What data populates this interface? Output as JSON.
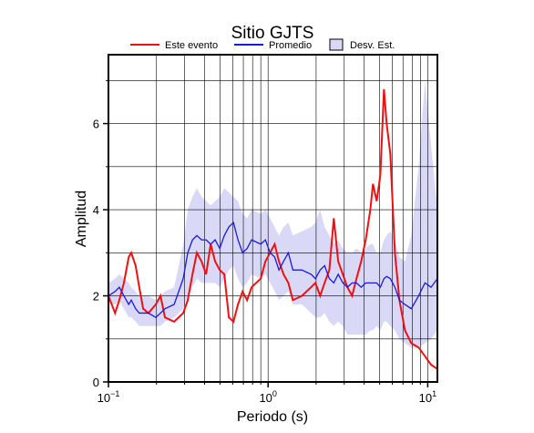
{
  "chart_data": {
    "type": "line",
    "title": "Sitio GJTS",
    "x_label": "Periodo (s)",
    "y_label": "Amplitud",
    "xlog": true,
    "xlim": [
      0.1,
      11.5
    ],
    "ylim": [
      0,
      7.6
    ],
    "xticks": [
      {
        "value": 0.1,
        "label": "10",
        "exponent": "−1"
      },
      {
        "value": 1,
        "label": "10",
        "exponent": "0"
      },
      {
        "value": 10,
        "label": "10",
        "exponent": "1"
      }
    ],
    "xminor": [
      0.2,
      0.3,
      0.4,
      0.5,
      0.6,
      0.7,
      0.8,
      0.9,
      2,
      3,
      4,
      5,
      6,
      7,
      8,
      9
    ],
    "yticks": [
      0,
      2,
      4,
      6
    ],
    "yminor": [
      1,
      3,
      5,
      7
    ],
    "grid": true,
    "x": [
      0.1,
      0.11,
      0.117,
      0.125,
      0.134,
      0.139,
      0.148,
      0.156,
      0.165,
      0.178,
      0.198,
      0.212,
      0.226,
      0.258,
      0.294,
      0.314,
      0.336,
      0.358,
      0.383,
      0.409,
      0.437,
      0.466,
      0.498,
      0.532,
      0.568,
      0.607,
      0.648,
      0.692,
      0.739,
      0.789,
      0.9,
      0.962,
      1.03,
      1.1,
      1.17,
      1.25,
      1.34,
      1.43,
      1.63,
      1.86,
      1.98,
      2.12,
      2.26,
      2.42,
      2.58,
      2.75,
      2.94,
      3.14,
      3.36,
      3.58,
      3.83,
      4.09,
      4.37,
      4.54,
      4.79,
      5.05,
      5.32,
      5.53,
      5.83,
      6.23,
      6.65,
      7.2,
      7.89,
      8.77,
      9.61,
      10.5,
      11.5
    ],
    "series": [
      {
        "name": "Este evento",
        "color": "#ee1111",
        "values": [
          2.0,
          1.6,
          1.9,
          2.3,
          2.9,
          3.0,
          2.7,
          2.2,
          1.7,
          1.6,
          1.8,
          2.0,
          1.5,
          1.4,
          1.6,
          1.9,
          2.5,
          3.0,
          2.8,
          2.5,
          3.2,
          2.8,
          2.6,
          2.5,
          1.5,
          1.4,
          1.8,
          2.1,
          1.9,
          2.2,
          2.4,
          2.8,
          3.0,
          3.2,
          2.8,
          2.5,
          2.3,
          1.9,
          2.0,
          2.2,
          2.3,
          2.0,
          2.3,
          2.6,
          3.8,
          2.8,
          2.5,
          2.2,
          2.0,
          2.4,
          2.8,
          3.3,
          4.0,
          4.6,
          4.2,
          4.8,
          6.8,
          6.0,
          5.3,
          3.0,
          1.9,
          1.2,
          0.9,
          0.8,
          0.6,
          0.4,
          0.3
        ]
      },
      {
        "name": "Promedio",
        "color": "#1a1adb",
        "values": [
          2.0,
          2.1,
          2.2,
          2.0,
          1.8,
          1.9,
          1.7,
          1.6,
          1.6,
          1.6,
          1.5,
          1.6,
          1.7,
          1.8,
          2.4,
          3.0,
          3.3,
          3.4,
          3.3,
          3.3,
          3.2,
          3.3,
          3.1,
          3.4,
          3.6,
          3.7,
          3.3,
          3.0,
          3.1,
          3.3,
          3.2,
          3.3,
          3.0,
          2.9,
          2.6,
          2.8,
          3.0,
          2.6,
          2.6,
          2.5,
          2.4,
          2.6,
          2.7,
          2.4,
          2.3,
          2.5,
          2.3,
          2.2,
          2.3,
          2.3,
          2.2,
          2.3,
          2.3,
          2.3,
          2.3,
          2.2,
          2.4,
          2.45,
          2.4,
          2.2,
          1.9,
          1.8,
          1.7,
          2.0,
          2.3,
          2.2,
          2.4
        ]
      },
      {
        "name": "Desv. Est.",
        "type": "band",
        "color": "#d9d9f7",
        "upper": [
          2.3,
          2.4,
          2.5,
          2.4,
          2.3,
          2.2,
          2.1,
          2.0,
          2.0,
          2.0,
          1.9,
          2.0,
          2.1,
          2.2,
          3.2,
          4.0,
          4.3,
          4.5,
          4.3,
          4.2,
          4.1,
          4.2,
          4.3,
          4.5,
          4.4,
          4.3,
          4.2,
          3.9,
          3.8,
          4.0,
          3.9,
          4.0,
          3.8,
          3.6,
          3.4,
          3.6,
          3.7,
          3.4,
          3.5,
          3.6,
          3.7,
          4.0,
          3.6,
          3.4,
          3.2,
          3.3,
          3.1,
          3.0,
          3.0,
          3.1,
          3.0,
          3.1,
          3.2,
          3.2,
          3.0,
          3.0,
          3.3,
          3.4,
          3.5,
          3.3,
          2.9,
          2.8,
          3.4,
          5.0,
          7.0,
          5.5,
          4.0
        ],
        "lower": [
          1.8,
          1.8,
          1.9,
          1.7,
          1.5,
          1.5,
          1.4,
          1.3,
          1.3,
          1.3,
          1.3,
          1.3,
          1.4,
          1.5,
          1.7,
          2.0,
          2.2,
          2.4,
          2.3,
          2.3,
          2.3,
          2.3,
          2.2,
          2.4,
          2.6,
          2.7,
          2.4,
          2.2,
          2.3,
          2.5,
          2.4,
          2.5,
          2.3,
          2.1,
          1.9,
          2.0,
          2.1,
          1.8,
          1.8,
          1.6,
          1.5,
          1.5,
          1.6,
          1.4,
          1.3,
          1.4,
          1.3,
          1.1,
          1.1,
          1.1,
          1.1,
          1.1,
          1.2,
          1.2,
          1.3,
          1.2,
          1.4,
          1.4,
          1.3,
          1.2,
          1.0,
          0.9,
          0.8,
          0.8,
          0.9,
          1.0,
          1.2
        ]
      }
    ]
  }
}
